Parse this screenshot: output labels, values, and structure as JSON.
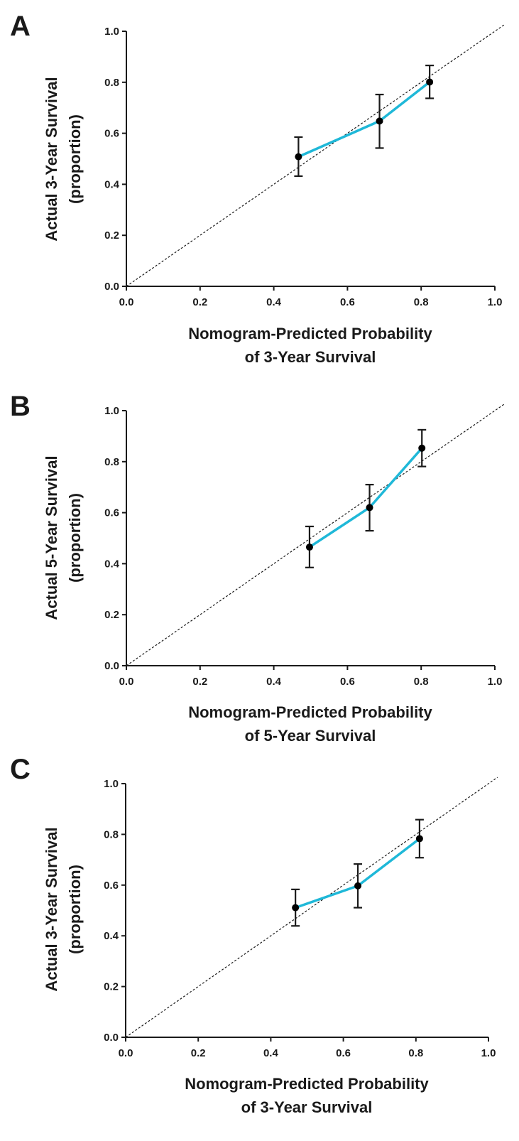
{
  "colors": {
    "series_line": "#1fb8d8",
    "points": "#000000",
    "axes": "#1a1a1a",
    "background": "#ffffff"
  },
  "chart_data": [
    {
      "panel": "A",
      "type": "line",
      "xlabel_lines": [
        "Nomogram-Predicted Probability",
        "of 3-Year Survival"
      ],
      "ylabel_lines": [
        "Actual 3-Year Survival",
        "(proportion)"
      ],
      "xlim": [
        0,
        1
      ],
      "ylim": [
        0,
        1
      ],
      "x_ticks": [
        "0.0",
        "0.2",
        "0.4",
        "0.6",
        "0.8",
        "1.0"
      ],
      "y_ticks": [
        "0.0",
        "0.2",
        "0.4",
        "0.6",
        "0.8",
        "1.0"
      ],
      "reference_line": "diagonal dashed (y = x)",
      "grid": false,
      "points": [
        {
          "x": 0.467,
          "y": 0.508,
          "lower": 0.432,
          "upper": 0.585
        },
        {
          "x": 0.687,
          "y": 0.648,
          "lower": 0.542,
          "upper": 0.752
        },
        {
          "x": 0.823,
          "y": 0.801,
          "lower": 0.737,
          "upper": 0.866
        }
      ]
    },
    {
      "panel": "B",
      "type": "line",
      "xlabel_lines": [
        "Nomogram-Predicted Probability",
        "of 5-Year Survival"
      ],
      "ylabel_lines": [
        "Actual 5-Year Survival",
        "(proportion)"
      ],
      "xlim": [
        0,
        1
      ],
      "ylim": [
        0,
        1
      ],
      "x_ticks": [
        "0.0",
        "0.2",
        "0.4",
        "0.6",
        "0.8",
        "1.0"
      ],
      "y_ticks": [
        "0.0",
        "0.2",
        "0.4",
        "0.6",
        "0.8",
        "1.0"
      ],
      "reference_line": "diagonal dashed (y = x)",
      "grid": false,
      "points": [
        {
          "x": 0.497,
          "y": 0.465,
          "lower": 0.385,
          "upper": 0.546
        },
        {
          "x": 0.66,
          "y": 0.62,
          "lower": 0.529,
          "upper": 0.71
        },
        {
          "x": 0.802,
          "y": 0.853,
          "lower": 0.781,
          "upper": 0.925
        }
      ]
    },
    {
      "panel": "C",
      "type": "line",
      "xlabel_lines": [
        "Nomogram-Predicted Probability",
        "of 3-Year Survival"
      ],
      "ylabel_lines": [
        "Actual 3-Year Survival",
        "(proportion)"
      ],
      "xlim": [
        0,
        1
      ],
      "ylim": [
        0,
        1
      ],
      "x_ticks": [
        "0.0",
        "0.2",
        "0.4",
        "0.6",
        "0.8",
        "1.0"
      ],
      "y_ticks": [
        "0.0",
        "0.2",
        "0.4",
        "0.6",
        "0.8",
        "1.0"
      ],
      "reference_line": "diagonal dashed (y = x)",
      "grid": false,
      "points": [
        {
          "x": 0.468,
          "y": 0.511,
          "lower": 0.439,
          "upper": 0.583
        },
        {
          "x": 0.64,
          "y": 0.597,
          "lower": 0.511,
          "upper": 0.683
        },
        {
          "x": 0.81,
          "y": 0.783,
          "lower": 0.708,
          "upper": 0.858
        }
      ]
    }
  ]
}
